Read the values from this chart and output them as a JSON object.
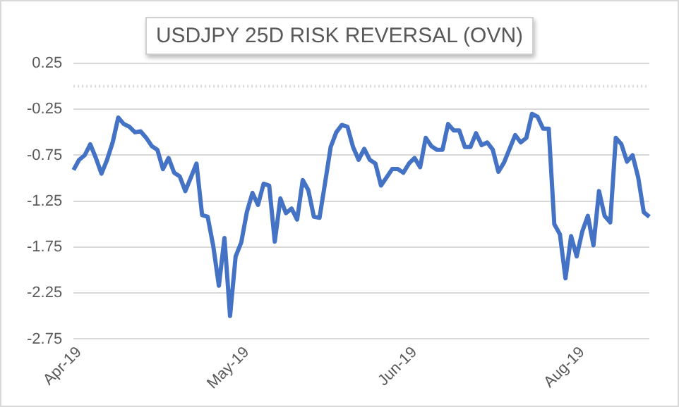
{
  "chart_data": {
    "type": "line",
    "title": "USDJPY 25D RISK REVERSAL (OVN)",
    "categories": [
      null,
      "Apr-19",
      null,
      null,
      null,
      null,
      null,
      null,
      null,
      null,
      null,
      null,
      null,
      null,
      null,
      null,
      null,
      null,
      null,
      null,
      null,
      null,
      null,
      null,
      null,
      null,
      null,
      null,
      null,
      null,
      null,
      "May-19",
      null,
      null,
      null,
      null,
      null,
      null,
      null,
      null,
      null,
      null,
      null,
      null,
      null,
      null,
      null,
      null,
      null,
      null,
      null,
      null,
      null,
      null,
      null,
      null,
      null,
      null,
      null,
      null,
      null,
      "Jun-19",
      null,
      null,
      null,
      null,
      null,
      null,
      null,
      null,
      null,
      null,
      null,
      null,
      null,
      null,
      null,
      null,
      null,
      null,
      null,
      null,
      null,
      null,
      null,
      null,
      null,
      null,
      null,
      null,
      null,
      "Aug-19",
      null,
      null,
      null,
      null,
      null,
      null,
      null,
      null,
      null,
      null,
      null,
      null
    ],
    "series": [
      {
        "color": "#4472c4",
        "values": [
          -0.91,
          -0.8,
          -0.75,
          -0.63,
          -0.78,
          -0.95,
          -0.8,
          -0.61,
          -0.34,
          -0.41,
          -0.44,
          -0.5,
          -0.49,
          -0.56,
          -0.65,
          -0.69,
          -0.9,
          -0.78,
          -0.94,
          -0.98,
          -1.14,
          -0.99,
          -0.84,
          -1.4,
          -1.42,
          -1.74,
          -2.17,
          -1.65,
          -2.5,
          -1.85,
          -1.7,
          -1.37,
          -1.16,
          -1.29,
          -1.06,
          -1.08,
          -1.69,
          -1.22,
          -1.38,
          -1.33,
          -1.45,
          -1.02,
          -1.13,
          -1.42,
          -1.43,
          -1.05,
          -0.66,
          -0.5,
          -0.42,
          -0.44,
          -0.66,
          -0.8,
          -0.68,
          -0.8,
          -0.84,
          -1.08,
          -0.99,
          -0.9,
          -0.9,
          -0.94,
          -0.84,
          -0.78,
          -0.88,
          -0.56,
          -0.65,
          -0.69,
          -0.69,
          -0.41,
          -0.48,
          -0.48,
          -0.66,
          -0.66,
          -0.51,
          -0.64,
          -0.61,
          -0.69,
          -0.93,
          -0.83,
          -0.68,
          -0.53,
          -0.61,
          -0.56,
          -0.3,
          -0.33,
          -0.46,
          -0.46,
          -1.5,
          -1.61,
          -2.09,
          -1.63,
          -1.85,
          -1.58,
          -1.41,
          -1.73,
          -1.14,
          -1.41,
          -1.48,
          -0.56,
          -0.63,
          -0.82,
          -0.75,
          -0.99,
          -1.37,
          -1.42
        ]
      }
    ],
    "ylim": [
      -2.75,
      0.25
    ],
    "yticks": [
      0.25,
      -0.25,
      -0.75,
      -1.25,
      -1.75,
      -2.25,
      -2.75
    ],
    "ref_lines": [
      {
        "axis": "y",
        "value": 0,
        "color": "#d9d9d9",
        "line_style": "dotted"
      }
    ],
    "grid": "y",
    "legend": false,
    "marker": "none",
    "line_style": "solid"
  }
}
